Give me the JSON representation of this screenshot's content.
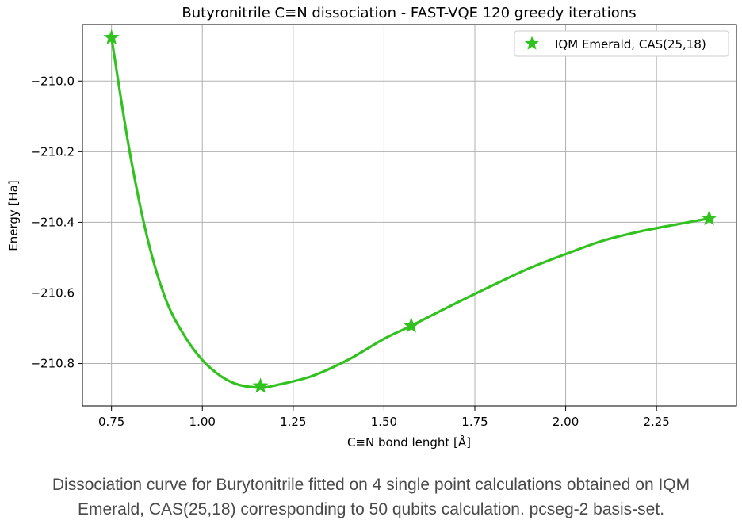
{
  "chart_data": {
    "type": "line",
    "title": "Butyronitrile C≡N dissociation - FAST-VQE 120 greedy iterations",
    "xlabel": "C≡N bond lenght [Å]",
    "ylabel": "Energy [Ha]",
    "xlim": [
      0.67,
      2.47
    ],
    "ylim": [
      -210.92,
      -209.84
    ],
    "grid": true,
    "legend_position": "top-right",
    "xticks": [
      0.75,
      1.0,
      1.25,
      1.5,
      1.75,
      2.0,
      2.25
    ],
    "xtick_labels": [
      "0.75",
      "1.00",
      "1.25",
      "1.50",
      "1.75",
      "2.00",
      "2.25"
    ],
    "yticks": [
      -210.0,
      -210.2,
      -210.4,
      -210.6,
      -210.8
    ],
    "ytick_labels": [
      "−210.0",
      "−210.2",
      "−210.4",
      "−210.6",
      "−210.8"
    ],
    "series": [
      {
        "name": "IQM Emerald, CAS(25,18)",
        "color": "#32c21f",
        "marker": "star",
        "points": [
          {
            "x": 0.75,
            "y": -209.877
          },
          {
            "x": 1.16,
            "y": -210.864
          },
          {
            "x": 1.575,
            "y": -210.693
          },
          {
            "x": 2.395,
            "y": -210.389
          }
        ]
      }
    ],
    "fitted_curve": {
      "color": "#32c21f",
      "x": [
        0.75,
        0.8,
        0.85,
        0.9,
        0.95,
        1.0,
        1.05,
        1.1,
        1.16,
        1.2,
        1.3,
        1.4,
        1.5,
        1.575,
        1.7,
        1.8,
        1.9,
        2.0,
        2.1,
        2.2,
        2.3,
        2.395
      ],
      "y": [
        -209.877,
        -210.2,
        -210.45,
        -210.62,
        -210.72,
        -210.79,
        -210.835,
        -210.86,
        -210.868,
        -210.862,
        -210.836,
        -210.79,
        -210.73,
        -210.693,
        -210.628,
        -210.578,
        -210.53,
        -210.49,
        -210.453,
        -210.427,
        -210.407,
        -210.389
      ]
    }
  },
  "caption": {
    "line1": "Dissociation curve for Burytonitrile fitted on 4 single point calculations obtained on IQM",
    "line2": "Emerald, CAS(25,18) corresponding to 50 qubits calculation. pcseg-2 basis-set."
  }
}
